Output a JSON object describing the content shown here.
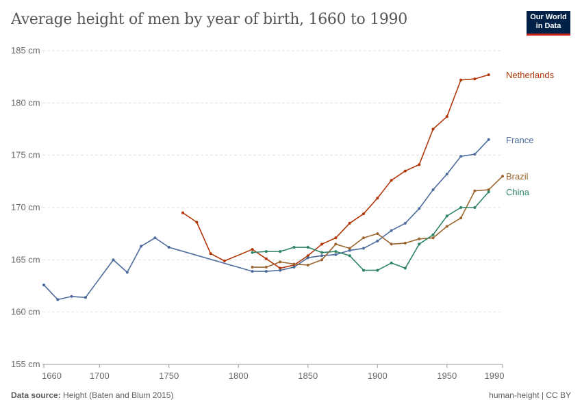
{
  "title": "Average height of men by year of birth, 1660 to 1990",
  "logo": {
    "line1": "Our World",
    "line2": "in Data"
  },
  "footer": {
    "source_label": "Data source:",
    "source": "Height (Baten and Blum 2015)",
    "right": "human-height | CC BY"
  },
  "chart_data": {
    "type": "line",
    "title": "Average height of men by year of birth, 1660 to 1990",
    "xlim": [
      1660,
      1990
    ],
    "ylim": [
      155,
      185
    ],
    "x_ticks": [
      1660,
      1700,
      1750,
      1800,
      1850,
      1900,
      1950,
      1990
    ],
    "y_ticks": [
      155,
      160,
      165,
      170,
      175,
      180,
      185
    ],
    "y_tick_labels": [
      "155 cm",
      "160 cm",
      "165 cm",
      "170 cm",
      "175 cm",
      "180 cm",
      "185 cm"
    ],
    "grid": "horizontal dashed",
    "legend": "right, inline labels",
    "series": [
      {
        "name": "Netherlands",
        "color": "#b13507",
        "x": [
          1760,
          1770,
          1780,
          1790,
          1810,
          1820,
          1830,
          1840,
          1850,
          1860,
          1870,
          1880,
          1890,
          1900,
          1910,
          1920,
          1930,
          1940,
          1950,
          1960,
          1970,
          1980
        ],
        "y": [
          169.5,
          168.6,
          165.6,
          164.9,
          166.0,
          165.1,
          164.2,
          164.5,
          165.4,
          166.5,
          167.1,
          168.5,
          169.4,
          170.9,
          172.6,
          173.5,
          174.1,
          177.5,
          178.7,
          182.2,
          182.3,
          182.7
        ]
      },
      {
        "name": "France",
        "color": "#4c6a9c",
        "x": [
          1660,
          1670,
          1680,
          1690,
          1710,
          1720,
          1730,
          1740,
          1750,
          1810,
          1820,
          1830,
          1840,
          1850,
          1860,
          1870,
          1880,
          1890,
          1900,
          1910,
          1920,
          1930,
          1940,
          1950,
          1960,
          1970,
          1980
        ],
        "y": [
          162.6,
          161.2,
          161.5,
          161.4,
          165.0,
          163.8,
          166.3,
          167.1,
          166.2,
          163.9,
          163.9,
          164.0,
          164.3,
          165.2,
          165.4,
          165.5,
          165.9,
          166.1,
          166.8,
          167.8,
          168.5,
          169.9,
          171.7,
          173.2,
          174.9,
          175.1,
          176.5
        ]
      },
      {
        "name": "Brazil",
        "color": "#9a652e",
        "x": [
          1810,
          1820,
          1830,
          1840,
          1850,
          1860,
          1870,
          1880,
          1890,
          1900,
          1910,
          1920,
          1930,
          1940,
          1950,
          1960,
          1970,
          1980,
          1990
        ],
        "y": [
          164.3,
          164.3,
          164.8,
          164.6,
          164.5,
          165.0,
          166.5,
          166.1,
          167.1,
          167.5,
          166.5,
          166.6,
          167.0,
          167.1,
          168.2,
          169.0,
          171.6,
          171.7,
          173.0
        ]
      },
      {
        "name": "China",
        "color": "#2c8465",
        "x": [
          1810,
          1820,
          1830,
          1840,
          1850,
          1860,
          1870,
          1880,
          1890,
          1900,
          1910,
          1920,
          1930,
          1940,
          1950,
          1960,
          1970,
          1980
        ],
        "y": [
          165.7,
          165.8,
          165.8,
          166.2,
          166.2,
          165.7,
          165.8,
          165.4,
          164.0,
          164.0,
          164.7,
          164.2,
          166.5,
          167.4,
          169.2,
          170.0,
          170.0,
          171.5
        ]
      }
    ]
  }
}
